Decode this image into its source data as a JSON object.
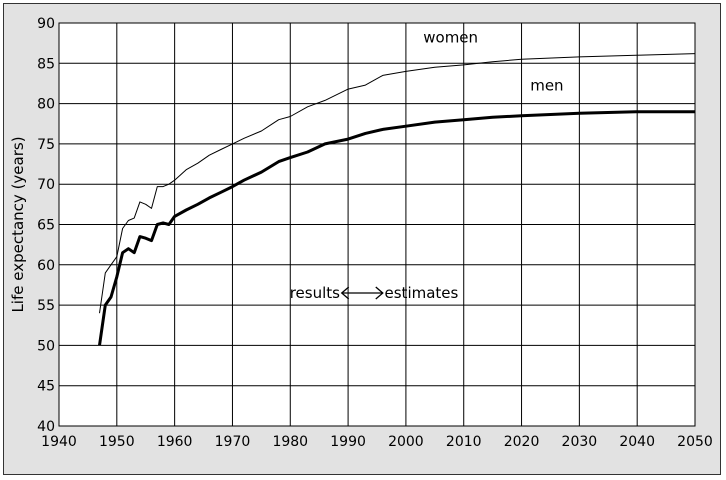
{
  "chart_data": {
    "type": "line",
    "title": "",
    "xlabel": "",
    "ylabel": "Life expectancy (years)",
    "xlim": [
      1940,
      2050
    ],
    "ylim": [
      40,
      90
    ],
    "xticks": [
      1940,
      1950,
      1960,
      1970,
      1980,
      1990,
      2000,
      2010,
      2020,
      2030,
      2040,
      2050
    ],
    "yticks": [
      40,
      45,
      50,
      55,
      60,
      65,
      70,
      75,
      80,
      85,
      90
    ],
    "grid": true,
    "annotations": {
      "left": "results",
      "right": "estimates"
    },
    "series": [
      {
        "name": "women",
        "color": "#000000",
        "x": [
          1947,
          1948,
          1949,
          1950,
          1951,
          1952,
          1953,
          1954,
          1955,
          1956,
          1957,
          1958,
          1959,
          1960,
          1962,
          1964,
          1966,
          1968,
          1970,
          1972,
          1975,
          1978,
          1980,
          1983,
          1986,
          1990,
          1993,
          1996,
          2000,
          2005,
          2010,
          2015,
          2020,
          2030,
          2040,
          2050
        ],
        "y": [
          54.0,
          59.0,
          60.0,
          61.0,
          64.5,
          65.5,
          65.8,
          67.8,
          67.5,
          67.0,
          69.7,
          69.7,
          70.0,
          70.5,
          71.8,
          72.6,
          73.6,
          74.3,
          75.0,
          75.7,
          76.6,
          78.0,
          78.4,
          79.6,
          80.4,
          81.8,
          82.3,
          83.5,
          84.0,
          84.5,
          84.8,
          85.2,
          85.5,
          85.8,
          86.0,
          86.2
        ]
      },
      {
        "name": "men",
        "color": "#000000",
        "x": [
          1947,
          1948,
          1949,
          1950,
          1951,
          1952,
          1953,
          1954,
          1955,
          1956,
          1957,
          1958,
          1959,
          1960,
          1962,
          1964,
          1966,
          1968,
          1970,
          1972,
          1975,
          1978,
          1980,
          1983,
          1986,
          1990,
          1993,
          1996,
          2000,
          2005,
          2010,
          2015,
          2020,
          2030,
          2040,
          2050
        ],
        "y": [
          50.0,
          55.0,
          56.0,
          58.5,
          61.5,
          62.0,
          61.5,
          63.5,
          63.3,
          63.0,
          65.0,
          65.2,
          65.0,
          66.0,
          66.8,
          67.5,
          68.3,
          69.0,
          69.7,
          70.5,
          71.5,
          72.8,
          73.3,
          74.0,
          75.0,
          75.6,
          76.3,
          76.8,
          77.2,
          77.7,
          78.0,
          78.3,
          78.5,
          78.8,
          79.0,
          79.0
        ]
      }
    ]
  }
}
